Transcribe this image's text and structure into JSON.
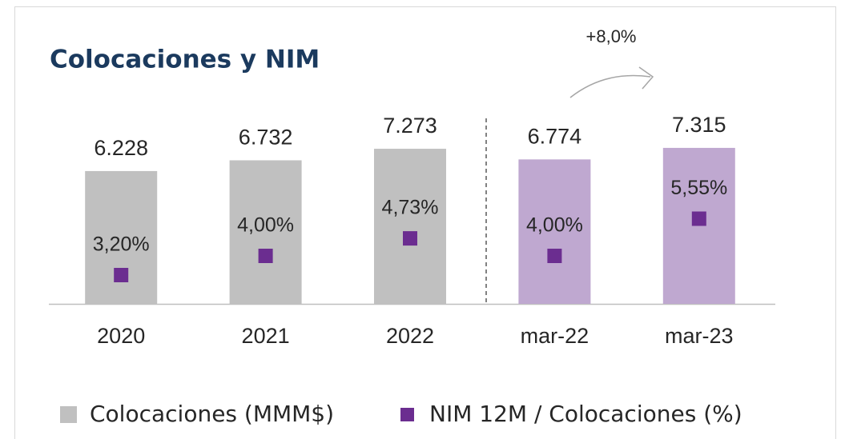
{
  "chart_data": {
    "type": "bar",
    "title": "Colocaciones y NIM",
    "annotation": "+8,0%",
    "categories": [
      "2020",
      "2021",
      "2022",
      "mar-22",
      "mar-23"
    ],
    "series": [
      {
        "name": "Colocaciones (MMM$)",
        "type": "bar",
        "color": "#c0c0c0",
        "colors": [
          "#c0c0c0",
          "#c0c0c0",
          "#c0c0c0",
          "#bfa8d0",
          "#bfa8d0"
        ],
        "values": [
          6228,
          6732,
          7273,
          6774,
          7315
        ],
        "value_labels": [
          "6.228",
          "6.732",
          "7.273",
          "6.774",
          "7.315"
        ]
      },
      {
        "name": "NIM 12M / Colocaciones (%)",
        "type": "scatter",
        "axis": "y2",
        "color": "#6b2d90",
        "values": [
          3.2,
          4.0,
          4.73,
          4.0,
          5.55
        ],
        "value_labels": [
          "3,20%",
          "4,00%",
          "4,73%",
          "4,00%",
          "5,55%"
        ]
      }
    ],
    "ylim": [
      0,
      9000
    ],
    "y2lim": [
      2,
      10
    ]
  }
}
